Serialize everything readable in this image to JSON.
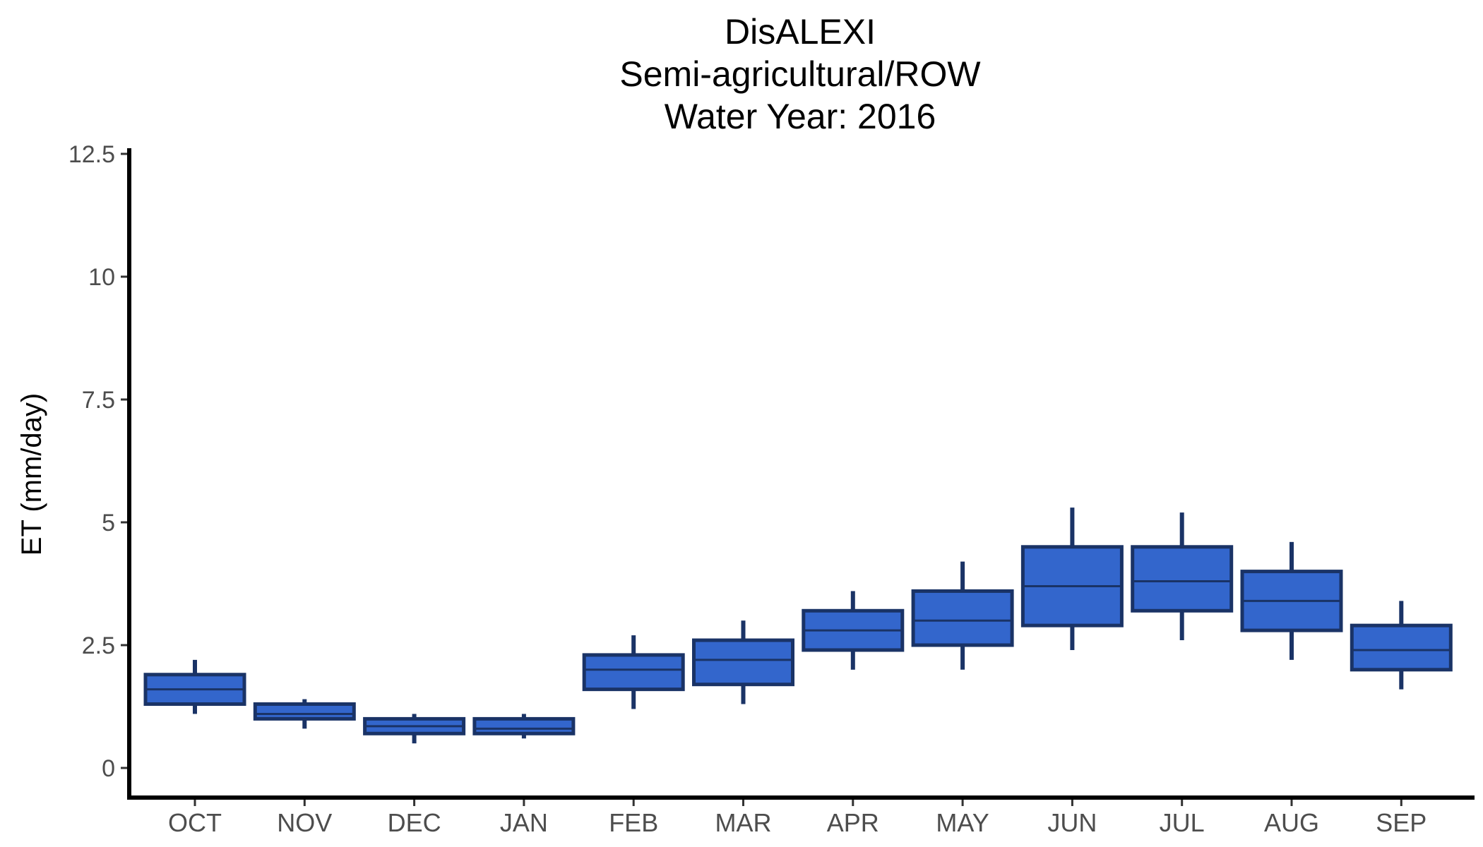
{
  "chart_data": {
    "type": "box",
    "title": [
      "DisALEXI",
      "Semi-agricultural/ROW",
      "Water Year: 2016"
    ],
    "xlabel": "",
    "ylabel": "ET (mm/day)",
    "ylim": [
      -0.6,
      12.6
    ],
    "yticks": [
      "0",
      "2.5",
      "5",
      "7.5",
      "10",
      "12.5"
    ],
    "ytick_values": [
      0,
      2.5,
      5,
      7.5,
      10,
      12.5
    ],
    "categories": [
      "OCT",
      "NOV",
      "DEC",
      "JAN",
      "FEB",
      "MAR",
      "APR",
      "MAY",
      "JUN",
      "JUL",
      "AUG",
      "SEP"
    ],
    "boxes": [
      {
        "min": 1.1,
        "q1": 1.3,
        "median": 1.6,
        "q3": 1.9,
        "max": 2.2
      },
      {
        "min": 0.8,
        "q1": 1.0,
        "median": 1.1,
        "q3": 1.3,
        "max": 1.4
      },
      {
        "min": 0.5,
        "q1": 0.7,
        "median": 0.85,
        "q3": 1.0,
        "max": 1.1
      },
      {
        "min": 0.6,
        "q1": 0.7,
        "median": 0.8,
        "q3": 1.0,
        "max": 1.1
      },
      {
        "min": 1.2,
        "q1": 1.6,
        "median": 2.0,
        "q3": 2.3,
        "max": 2.7
      },
      {
        "min": 1.3,
        "q1": 1.7,
        "median": 2.2,
        "q3": 2.6,
        "max": 3.0
      },
      {
        "min": 2.0,
        "q1": 2.4,
        "median": 2.8,
        "q3": 3.2,
        "max": 3.6
      },
      {
        "min": 2.0,
        "q1": 2.5,
        "median": 3.0,
        "q3": 3.6,
        "max": 4.2
      },
      {
        "min": 2.4,
        "q1": 2.9,
        "median": 3.7,
        "q3": 4.5,
        "max": 5.3
      },
      {
        "min": 2.6,
        "q1": 3.2,
        "median": 3.8,
        "q3": 4.5,
        "max": 5.2
      },
      {
        "min": 2.2,
        "q1": 2.8,
        "median": 3.4,
        "q3": 4.0,
        "max": 4.6
      },
      {
        "min": 1.6,
        "q1": 2.0,
        "median": 2.4,
        "q3": 2.9,
        "max": 3.4
      }
    ],
    "grid": false,
    "legend": "none",
    "colors": {
      "box_fill": "#3366cc",
      "box_stroke": "#1a3366",
      "axis": "#000000"
    }
  }
}
